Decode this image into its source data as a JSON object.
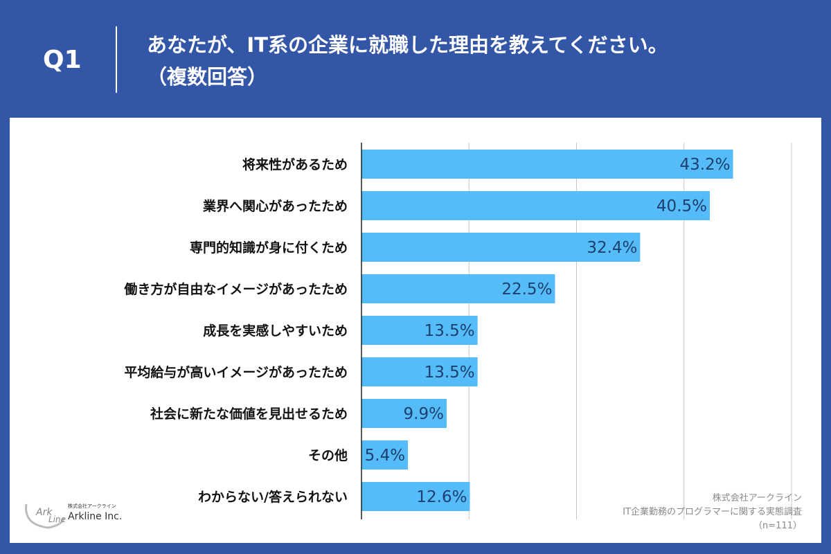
{
  "header": {
    "q_label": "Q1",
    "title_line1": "あなたが、IT系の企業に就職した理由を教えてください。",
    "title_line2": "（複数回答）"
  },
  "colors": {
    "frame": "#3456a6",
    "bar": "#55bcf7",
    "value_text": "#1d3f70"
  },
  "chart_data": {
    "type": "bar",
    "orientation": "horizontal",
    "categories": [
      "将来性があるため",
      "業界へ関心があったため",
      "専門的知識が身に付くため",
      "働き方が自由なイメージがあったため",
      "成長を実感しやすいため",
      "平均給与が高いイメージがあったため",
      "社会に新たな価値を見出せるため",
      "その他",
      "わからない/答えられない"
    ],
    "values": [
      43.2,
      40.5,
      32.4,
      22.5,
      13.5,
      13.5,
      9.9,
      5.4,
      12.6
    ],
    "value_labels": [
      "43.2%",
      "40.5%",
      "32.4%",
      "22.5%",
      "13.5%",
      "13.5%",
      "9.9%",
      "5.4%",
      "12.6%"
    ],
    "xlim": [
      0,
      50
    ],
    "grid": true,
    "grid_step": 12.5,
    "unit": "%"
  },
  "source": {
    "company": "株式会社アークライン",
    "survey": "IT企業勤務のプログラマーに関する実態調査",
    "n": "（n=111）"
  },
  "logo": {
    "jp": "株式会社アークライン",
    "en": "Arkline Inc.",
    "mark": "ArkLine"
  }
}
